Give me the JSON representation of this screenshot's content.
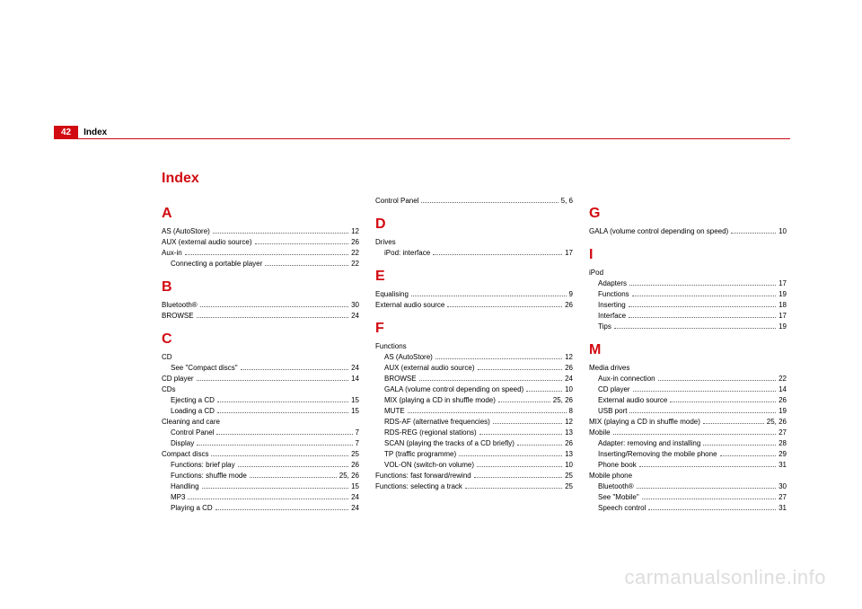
{
  "pageNumber": "42",
  "sectionLabel": "Index",
  "indexTitle": "Index",
  "watermark": "carmanualsonline.info",
  "colors": {
    "accent": "#d20a11",
    "text": "#000000",
    "watermark": "#dddddd",
    "background": "#ffffff"
  },
  "col1": [
    {
      "letter": "A"
    },
    {
      "label": "AS (AutoStore)",
      "pg": "12"
    },
    {
      "label": "AUX (external audio source)",
      "pg": "26"
    },
    {
      "label": "Aux-in",
      "pg": "22"
    },
    {
      "label": "Connecting a portable player",
      "pg": "22",
      "indent": 1
    },
    {
      "letter": "B"
    },
    {
      "label": "Bluetooth®",
      "pg": "30"
    },
    {
      "label": "BROWSE",
      "pg": "24"
    },
    {
      "letter": "C"
    },
    {
      "label": "CD"
    },
    {
      "label": "See \"Compact discs\"",
      "pg": "24",
      "indent": 1
    },
    {
      "label": "CD player",
      "pg": "14"
    },
    {
      "label": "CDs"
    },
    {
      "label": "Ejecting a CD",
      "pg": "15",
      "indent": 1
    },
    {
      "label": "Loading a CD",
      "pg": "15",
      "indent": 1
    },
    {
      "label": "Cleaning and care"
    },
    {
      "label": "Control Panel",
      "pg": "7",
      "indent": 1
    },
    {
      "label": "Display",
      "pg": "7",
      "indent": 1
    },
    {
      "label": "Compact discs",
      "pg": "25"
    },
    {
      "label": "Functions: brief play",
      "pg": "26",
      "indent": 1
    },
    {
      "label": "Functions: shuffle mode",
      "pg": "25, 26",
      "indent": 1
    },
    {
      "label": "Handling",
      "pg": "15",
      "indent": 1
    },
    {
      "label": "MP3",
      "pg": "24",
      "indent": 1
    },
    {
      "label": "Playing a CD",
      "pg": "24",
      "indent": 1
    }
  ],
  "col2": [
    {
      "label": "Control Panel",
      "pg": "5, 6"
    },
    {
      "letter": "D"
    },
    {
      "label": "Drives"
    },
    {
      "label": "iPod: interface",
      "pg": "17",
      "indent": 1
    },
    {
      "letter": "E"
    },
    {
      "label": "Equalising",
      "pg": "9"
    },
    {
      "label": "External audio source",
      "pg": "26"
    },
    {
      "letter": "F"
    },
    {
      "label": "Functions"
    },
    {
      "label": "AS (AutoStore)",
      "pg": "12",
      "indent": 1
    },
    {
      "label": "AUX (external audio source)",
      "pg": "26",
      "indent": 1
    },
    {
      "label": "BROWSE",
      "pg": "24",
      "indent": 1
    },
    {
      "label": "GALA (volume control depending on speed)",
      "pg": "10",
      "indent": 1
    },
    {
      "label": "MIX (playing a CD in shuffle mode)",
      "pg": "25, 26",
      "indent": 1
    },
    {
      "label": "MUTE",
      "pg": "8",
      "indent": 1
    },
    {
      "label": "RDS-AF (alternative frequencies)",
      "pg": "12",
      "indent": 1
    },
    {
      "label": "RDS-REG (regional stations)",
      "pg": "13",
      "indent": 1
    },
    {
      "label": "SCAN (playing the tracks of a CD briefly)",
      "pg": "26",
      "indent": 1
    },
    {
      "label": "TP (traffic programme)",
      "pg": "13",
      "indent": 1
    },
    {
      "label": "VOL-ON (switch-on volume)",
      "pg": "10",
      "indent": 1
    },
    {
      "label": "Functions: fast forward/rewind",
      "pg": "25"
    },
    {
      "label": "Functions: selecting a track",
      "pg": "25"
    }
  ],
  "col3": [
    {
      "letter": "G"
    },
    {
      "label": "GALA (volume control depending on speed)",
      "pg": "10"
    },
    {
      "letter": "I"
    },
    {
      "label": "iPod"
    },
    {
      "label": "Adapters",
      "pg": "17",
      "indent": 1
    },
    {
      "label": "Functions",
      "pg": "19",
      "indent": 1
    },
    {
      "label": "Inserting",
      "pg": "18",
      "indent": 1
    },
    {
      "label": "Interface",
      "pg": "17",
      "indent": 1
    },
    {
      "label": "Tips",
      "pg": "19",
      "indent": 1
    },
    {
      "letter": "M"
    },
    {
      "label": "Media drives"
    },
    {
      "label": "Aux-in connection",
      "pg": "22",
      "indent": 1
    },
    {
      "label": "CD player",
      "pg": "14",
      "indent": 1
    },
    {
      "label": "External audio source",
      "pg": "26",
      "indent": 1
    },
    {
      "label": "USB port",
      "pg": "19",
      "indent": 1
    },
    {
      "label": "MIX (playing a CD in shuffle mode)",
      "pg": "25, 26"
    },
    {
      "label": "Mobile",
      "pg": "27"
    },
    {
      "label": "Adapter: removing and installing",
      "pg": "28",
      "indent": 1
    },
    {
      "label": "Inserting/Removing the mobile phone",
      "pg": "29",
      "indent": 1
    },
    {
      "label": "Phone book",
      "pg": "31",
      "indent": 1
    },
    {
      "label": "Mobile phone"
    },
    {
      "label": "Bluetooth®",
      "pg": "30",
      "indent": 1
    },
    {
      "label": "See \"Mobile\"",
      "pg": "27",
      "indent": 1
    },
    {
      "label": "Speech control",
      "pg": "31",
      "indent": 1
    }
  ]
}
